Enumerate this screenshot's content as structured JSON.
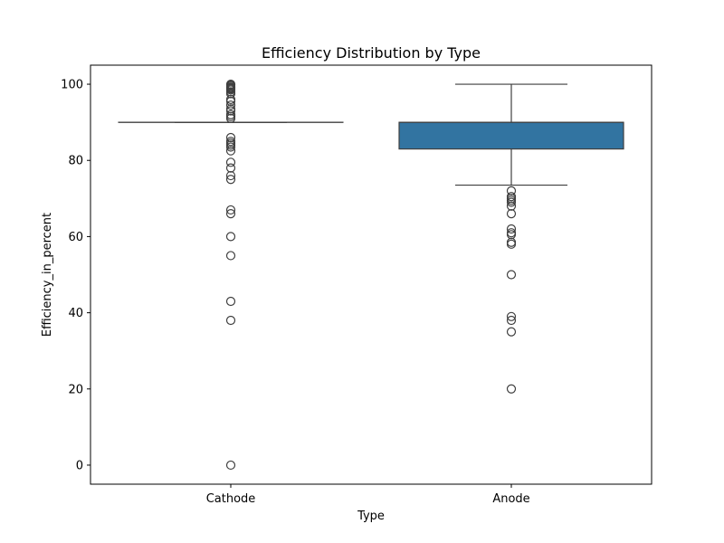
{
  "chart_data": {
    "type": "box",
    "title": "Efficiency Distribution by Type",
    "xlabel": "Type",
    "ylabel": "Efficiency_in_percent",
    "ylim": [
      -5,
      105
    ],
    "yticks": [
      0,
      20,
      40,
      60,
      80,
      100
    ],
    "grid": false,
    "categories": [
      "Cathode",
      "Anode"
    ],
    "boxes": [
      {
        "category": "Cathode",
        "q1": 90,
        "median": 90,
        "q3": 90,
        "whisker_low": 90,
        "whisker_high": 90,
        "outliers": [
          100,
          99.8,
          99.5,
          99.2,
          99,
          98.8,
          98.5,
          98,
          97.5,
          96,
          95.5,
          94.5,
          93.5,
          93,
          92,
          91.5,
          91,
          86,
          85,
          84.5,
          84,
          83.5,
          82.5,
          79.5,
          78,
          76,
          75,
          67,
          66,
          60,
          55,
          43,
          38,
          0
        ],
        "color": "#ffffff"
      },
      {
        "category": "Anode",
        "q1": 83,
        "median": 90,
        "q3": 90,
        "whisker_low": 73.5,
        "whisker_high": 100,
        "outliers": [
          72,
          70.5,
          70,
          69.5,
          69,
          68,
          66,
          62,
          61,
          60.5,
          58.5,
          58,
          50,
          39,
          38,
          35,
          20
        ],
        "color": "#3274a1"
      }
    ]
  }
}
